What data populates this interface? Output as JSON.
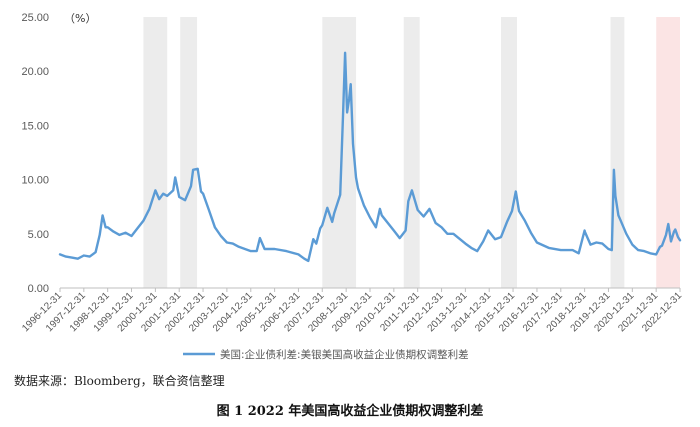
{
  "source_note": "数据来源：Bloomberg，联合资信整理",
  "figure_caption": "图 1    2022 年美国高收益企业债期权调整利差",
  "chart_data": {
    "type": "line",
    "unit_label": "（%）",
    "ylim": [
      0,
      25
    ],
    "yticks": [
      "0.00",
      "5.00",
      "10.00",
      "15.00",
      "20.00",
      "25.00"
    ],
    "xlim": [
      "1996-12-31",
      "2022-12-31"
    ],
    "xticks": [
      "1996-12-31",
      "1997-12-31",
      "1998-12-31",
      "1999-12-31",
      "2000-12-31",
      "2001-12-31",
      "2002-12-31",
      "2003-12-31",
      "2004-12-31",
      "2005-12-31",
      "2006-12-31",
      "2007-12-31",
      "2008-12-31",
      "2009-12-31",
      "2010-12-31",
      "2011-12-31",
      "2012-12-31",
      "2013-12-31",
      "2014-12-31",
      "2015-12-31",
      "2016-12-31",
      "2017-12-31",
      "2018-12-31",
      "2019-12-31",
      "2020-12-31",
      "2021-12-31",
      "2022-12-31"
    ],
    "grid": false,
    "legend_position": "bottom",
    "shaded_periods": [
      {
        "start": "2000-06-30",
        "end": "2001-06-30",
        "color": "#ececec"
      },
      {
        "start": "2002-01-15",
        "end": "2002-09-30",
        "color": "#ececec"
      },
      {
        "start": "2008-01-01",
        "end": "2009-05-31",
        "color": "#ececec"
      },
      {
        "start": "2011-06-01",
        "end": "2012-01-31",
        "color": "#ececec"
      },
      {
        "start": "2015-06-30",
        "end": "2016-02-29",
        "color": "#ececec"
      },
      {
        "start": "2020-02-01",
        "end": "2020-08-31",
        "color": "#ececec"
      },
      {
        "start": "2022-01-01",
        "end": "2022-12-31",
        "color": "#fbe4e4"
      }
    ],
    "series": [
      {
        "name": "美国:企业债利差:美银美国高收益企业债期权调整利差",
        "color": "#5b9bd5",
        "x": [
          "1996-12-31",
          "1997-03-31",
          "1997-06-30",
          "1997-09-30",
          "1997-12-31",
          "1998-03-31",
          "1998-06-30",
          "1998-08-31",
          "1998-10-15",
          "1998-11-30",
          "1998-12-31",
          "1999-03-31",
          "1999-06-30",
          "1999-09-30",
          "1999-12-31",
          "2000-03-31",
          "2000-06-30",
          "2000-09-30",
          "2000-12-31",
          "2001-02-28",
          "2001-04-30",
          "2001-06-30",
          "2001-09-30",
          "2001-10-31",
          "2001-12-31",
          "2002-03-31",
          "2002-06-30",
          "2002-07-31",
          "2002-10-10",
          "2002-11-30",
          "2002-12-31",
          "2003-03-31",
          "2003-06-30",
          "2003-09-30",
          "2003-12-31",
          "2004-03-31",
          "2004-06-30",
          "2004-12-31",
          "2005-03-31",
          "2005-05-20",
          "2005-07-31",
          "2005-12-31",
          "2006-06-30",
          "2006-12-31",
          "2007-03-31",
          "2007-05-31",
          "2007-08-15",
          "2007-09-30",
          "2007-11-30",
          "2007-12-31",
          "2008-03-17",
          "2008-05-31",
          "2008-06-30",
          "2008-09-30",
          "2008-11-15",
          "2008-12-15",
          "2009-01-15",
          "2009-02-15",
          "2009-03-10",
          "2009-04-15",
          "2009-05-31",
          "2009-06-30",
          "2009-09-30",
          "2009-12-31",
          "2010-03-31",
          "2010-05-31",
          "2010-06-30",
          "2010-12-31",
          "2011-03-31",
          "2011-06-30",
          "2011-08-10",
          "2011-10-04",
          "2011-12-31",
          "2012-03-31",
          "2012-06-30",
          "2012-09-30",
          "2012-12-31",
          "2013-03-31",
          "2013-06-30",
          "2013-12-31",
          "2014-03-31",
          "2014-06-30",
          "2014-09-30",
          "2014-12-15",
          "2015-03-31",
          "2015-06-30",
          "2015-09-30",
          "2015-12-15",
          "2016-02-11",
          "2016-03-31",
          "2016-06-30",
          "2016-09-30",
          "2016-12-31",
          "2017-06-30",
          "2017-12-31",
          "2018-06-30",
          "2018-10-01",
          "2018-12-31",
          "2019-01-03",
          "2019-03-31",
          "2019-06-30",
          "2019-09-30",
          "2019-12-31",
          "2020-02-20",
          "2020-03-23",
          "2020-04-15",
          "2020-05-31",
          "2020-06-30",
          "2020-09-30",
          "2020-12-31",
          "2021-03-31",
          "2021-06-30",
          "2021-09-30",
          "2021-12-31",
          "2022-02-28",
          "2022-03-31",
          "2022-05-31",
          "2022-07-05",
          "2022-08-15",
          "2022-09-30",
          "2022-10-20",
          "2022-11-30",
          "2022-12-31"
        ],
        "values": [
          3.1,
          2.9,
          2.8,
          2.7,
          3.0,
          2.9,
          3.3,
          4.9,
          6.7,
          5.6,
          5.6,
          5.2,
          4.9,
          5.1,
          4.8,
          5.5,
          6.2,
          7.3,
          9.0,
          8.2,
          8.7,
          8.5,
          9.0,
          10.2,
          8.4,
          8.1,
          9.4,
          10.9,
          11.0,
          8.9,
          8.7,
          7.2,
          5.6,
          4.8,
          4.2,
          4.1,
          3.8,
          3.4,
          3.4,
          4.6,
          3.6,
          3.6,
          3.4,
          3.1,
          2.7,
          2.5,
          4.5,
          4.1,
          5.5,
          5.8,
          7.4,
          6.1,
          6.9,
          8.6,
          16.4,
          21.7,
          16.2,
          17.5,
          18.8,
          13.3,
          10.2,
          9.2,
          7.6,
          6.5,
          5.6,
          7.3,
          6.7,
          5.3,
          4.6,
          5.3,
          8.0,
          9.0,
          7.2,
          6.6,
          7.3,
          6.0,
          5.6,
          5.0,
          5.0,
          4.1,
          3.7,
          3.4,
          4.3,
          5.3,
          4.5,
          4.7,
          6.1,
          7.1,
          8.9,
          7.1,
          6.2,
          5.1,
          4.2,
          3.7,
          3.5,
          3.5,
          3.2,
          5.3,
          5.2,
          4.0,
          4.2,
          4.1,
          3.6,
          3.5,
          10.9,
          8.5,
          6.7,
          6.3,
          5.0,
          4.0,
          3.5,
          3.4,
          3.2,
          3.1,
          3.8,
          3.9,
          4.9,
          5.9,
          4.3,
          5.2,
          5.4,
          4.7,
          4.4
        ]
      }
    ]
  }
}
